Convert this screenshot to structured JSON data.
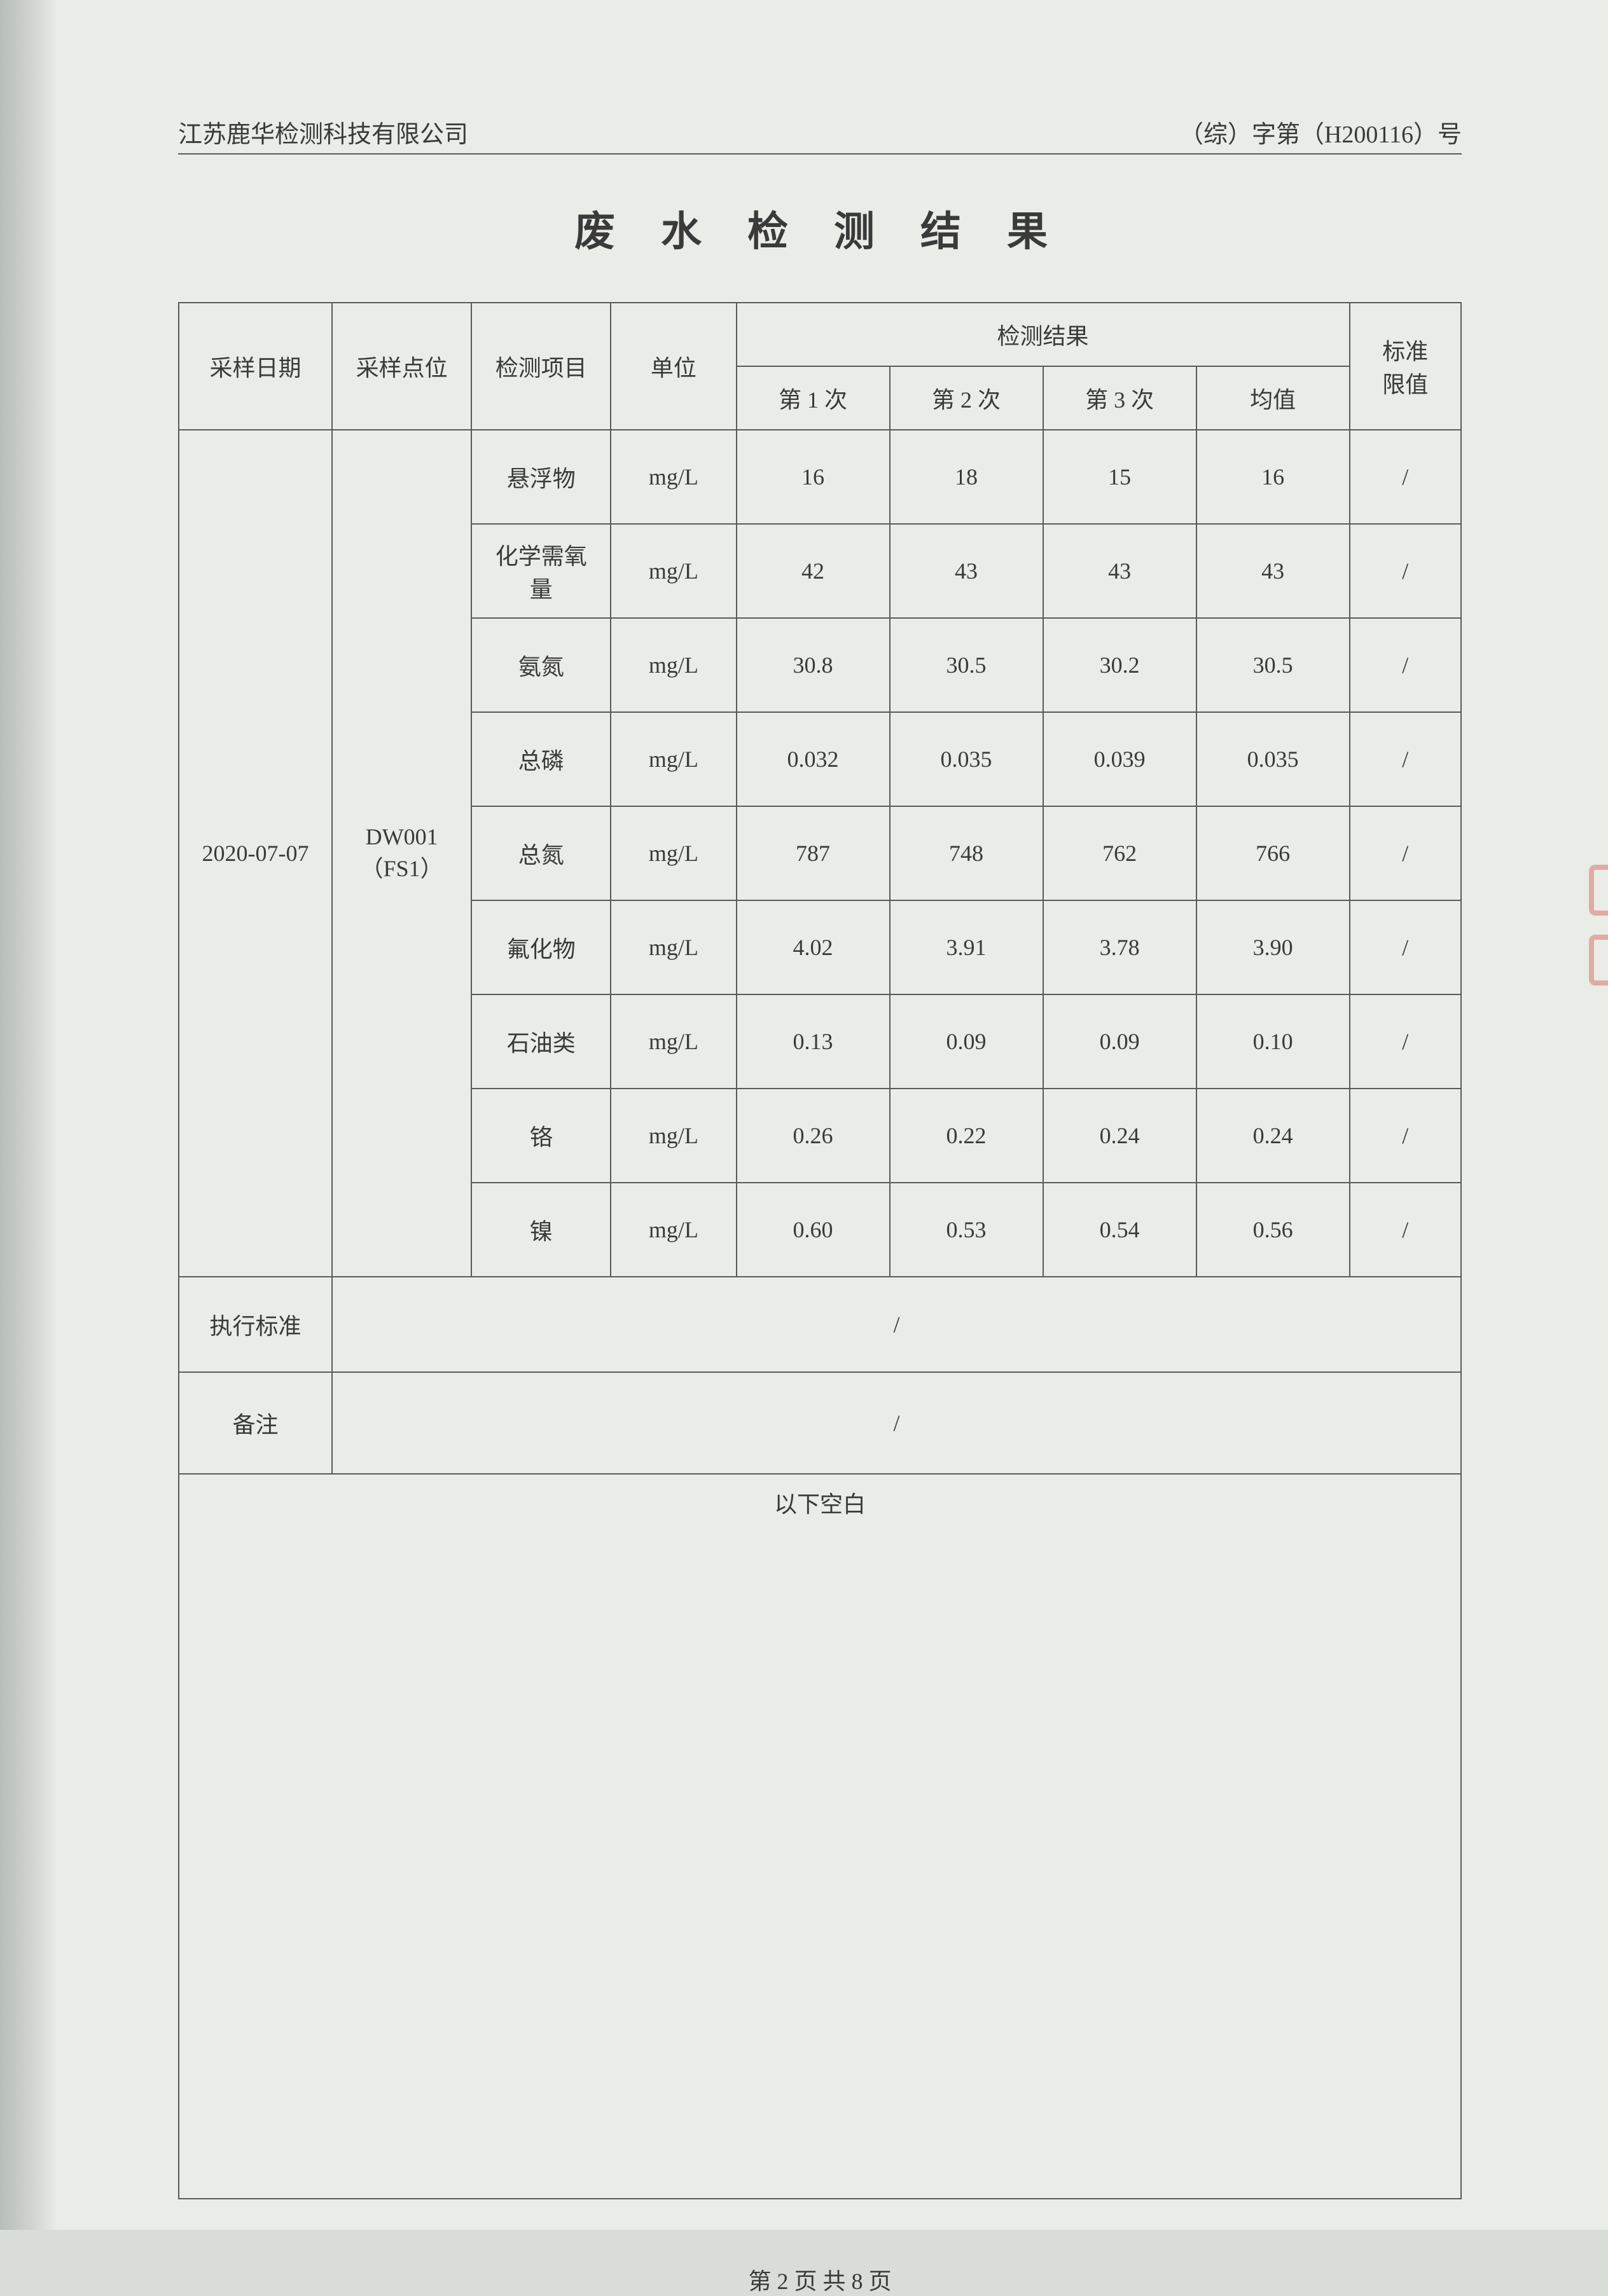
{
  "header": {
    "company": "江苏鹿华检测科技有限公司",
    "doc_no": "（综）字第（H200116）号"
  },
  "title": "废 水 检 测 结 果",
  "table": {
    "columns": {
      "date": "采样日期",
      "point": "采样点位",
      "item": "检测项目",
      "unit": "单位",
      "result_group": "检测结果",
      "r1": "第 1 次",
      "r2": "第 2 次",
      "r3": "第 3 次",
      "avg": "均值",
      "limit": "标准\n限值"
    },
    "col_widths": [
      "11%",
      "10%",
      "10%",
      "9%",
      "11%",
      "11%",
      "11%",
      "11%",
      "8%"
    ],
    "date": "2020-07-07",
    "point": "DW001\n（FS1）",
    "rows": [
      {
        "item": "悬浮物",
        "unit": "mg/L",
        "r1": "16",
        "r2": "18",
        "r3": "15",
        "avg": "16",
        "limit": "/"
      },
      {
        "item": "化学需氧\n量",
        "unit": "mg/L",
        "r1": "42",
        "r2": "43",
        "r3": "43",
        "avg": "43",
        "limit": "/"
      },
      {
        "item": "氨氮",
        "unit": "mg/L",
        "r1": "30.8",
        "r2": "30.5",
        "r3": "30.2",
        "avg": "30.5",
        "limit": "/"
      },
      {
        "item": "总磷",
        "unit": "mg/L",
        "r1": "0.032",
        "r2": "0.035",
        "r3": "0.039",
        "avg": "0.035",
        "limit": "/"
      },
      {
        "item": "总氮",
        "unit": "mg/L",
        "r1": "787",
        "r2": "748",
        "r3": "762",
        "avg": "766",
        "limit": "/"
      },
      {
        "item": "氟化物",
        "unit": "mg/L",
        "r1": "4.02",
        "r2": "3.91",
        "r3": "3.78",
        "avg": "3.90",
        "limit": "/"
      },
      {
        "item": "石油类",
        "unit": "mg/L",
        "r1": "0.13",
        "r2": "0.09",
        "r3": "0.09",
        "avg": "0.10",
        "limit": "/"
      },
      {
        "item": "铬",
        "unit": "mg/L",
        "r1": "0.26",
        "r2": "0.22",
        "r3": "0.24",
        "avg": "0.24",
        "limit": "/"
      },
      {
        "item": "镍",
        "unit": "mg/L",
        "r1": "0.60",
        "r2": "0.53",
        "r3": "0.54",
        "avg": "0.56",
        "limit": "/"
      }
    ],
    "standard_label": "执行标准",
    "standard_value": "/",
    "note_label": "备注",
    "note_value": "/",
    "blank_label": "以下空白"
  },
  "footer": "第 2 页  共 8 页",
  "colors": {
    "page_bg": "#e9ece7",
    "text": "#3a3a3a",
    "border": "#5a5a5a",
    "stamp": "#d14a3a"
  }
}
